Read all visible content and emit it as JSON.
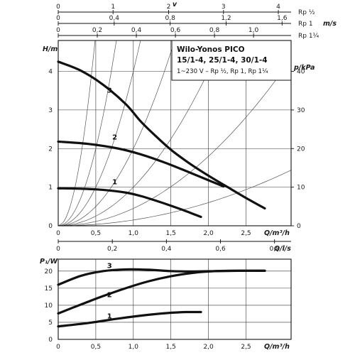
{
  "chart_data": [
    {
      "type": "line",
      "title": "Wilo-Yonos PICO",
      "title_line2": "15/1-4, 25/1-4, 30/1-4",
      "subtitle": "1~230 V – Rp ½, Rp 1, Rp 1¼",
      "xlabel": "Q/m³/h",
      "ylabel": "H/m",
      "y2label": "p/kPa",
      "xlim": [
        0,
        3.1
      ],
      "ylim": [
        0,
        4.8
      ],
      "y2lim": [
        0,
        48
      ],
      "xticks": [
        "0",
        "0,5",
        "1,0",
        "1,5",
        "2,0",
        "2,5"
      ],
      "yticks": [
        "0",
        "1",
        "2",
        "3",
        "4"
      ],
      "y2ticks": [
        "0",
        "10",
        "20",
        "30",
        "40"
      ],
      "grid": true,
      "series": [
        {
          "name": "1",
          "x": [
            0,
            0.3,
            0.6,
            0.9,
            1.1,
            1.3,
            1.5,
            1.7,
            1.9
          ],
          "y": [
            0.97,
            0.96,
            0.93,
            0.86,
            0.77,
            0.65,
            0.52,
            0.38,
            0.23
          ]
        },
        {
          "name": "2",
          "x": [
            0,
            0.4,
            0.8,
            1.1,
            1.4,
            1.7,
            2.0,
            2.2
          ],
          "y": [
            2.18,
            2.12,
            2.0,
            1.85,
            1.65,
            1.42,
            1.18,
            1.02
          ]
        },
        {
          "name": "3",
          "x": [
            0,
            0.3,
            0.6,
            0.9,
            1.1,
            1.3,
            1.5,
            1.7,
            1.9,
            2.1,
            2.3,
            2.5,
            2.75
          ],
          "y": [
            4.25,
            4.02,
            3.65,
            3.15,
            2.7,
            2.32,
            1.97,
            1.68,
            1.42,
            1.18,
            0.95,
            0.72,
            0.45
          ]
        }
      ],
      "system_curves_k": [
        20,
        8,
        4,
        2,
        1,
        0.45,
        0.15
      ],
      "secondary_x_scales": [
        {
          "label": "v",
          "unit_label": "",
          "max_label": "Rp ½",
          "ticks": [
            "0",
            "1",
            "2",
            "3",
            "4"
          ],
          "tick_x_q": [
            0,
            0.73,
            1.47,
            2.2,
            2.93
          ]
        },
        {
          "label": "",
          "unit_label": "m/s",
          "max_label": "Rp 1",
          "ticks": [
            "0",
            "0,4",
            "0,8",
            "1,2",
            "1,6"
          ],
          "tick_x_q": [
            0,
            0.745,
            1.49,
            2.235,
            2.98
          ]
        },
        {
          "label": "",
          "unit_label": "",
          "max_label": "Rp 1¼",
          "ticks": [
            "0",
            "0,2",
            "0,4",
            "0,6",
            "0,8",
            "1,0"
          ],
          "tick_x_q": [
            0,
            0.52,
            1.04,
            1.56,
            2.08,
            2.6
          ]
        }
      ]
    },
    {
      "type": "line",
      "title": "",
      "xlabel": "Q/m³/h",
      "ylabel": "P₁/W",
      "x2label": "Q/l/s",
      "xlim": [
        0,
        3.1
      ],
      "ylim": [
        0,
        23.5
      ],
      "xticks": [
        "0",
        "0,5",
        "1,0",
        "1,5",
        "2,0",
        "2,5"
      ],
      "yticks": [
        "0",
        "5",
        "10",
        "15",
        "20"
      ],
      "x2ticks": [
        "0",
        "0,2",
        "0,4",
        "0,6",
        "0,8"
      ],
      "x2ticks_q": [
        0,
        0.72,
        1.44,
        2.16,
        2.88
      ],
      "grid": true,
      "series": [
        {
          "name": "1",
          "x": [
            0,
            0.4,
            0.8,
            1.2,
            1.5,
            1.7,
            1.9
          ],
          "y": [
            3.8,
            4.8,
            6.1,
            7.2,
            7.8,
            8.0,
            8.0
          ]
        },
        {
          "name": "2",
          "x": [
            0,
            0.3,
            0.6,
            0.9,
            1.2,
            1.5,
            1.8,
            2.1,
            2.4,
            2.75
          ],
          "y": [
            7.6,
            10.2,
            12.7,
            15.0,
            17.0,
            18.5,
            19.5,
            20.0,
            20.1,
            20.1
          ]
        },
        {
          "name": "3",
          "x": [
            0,
            0.3,
            0.6,
            0.9,
            1.2,
            1.5,
            1.8,
            2.1,
            2.4,
            2.75
          ],
          "y": [
            16.0,
            18.6,
            20.0,
            20.5,
            20.4,
            20.0,
            19.9,
            20.0,
            20.1,
            20.1
          ]
        }
      ]
    }
  ]
}
